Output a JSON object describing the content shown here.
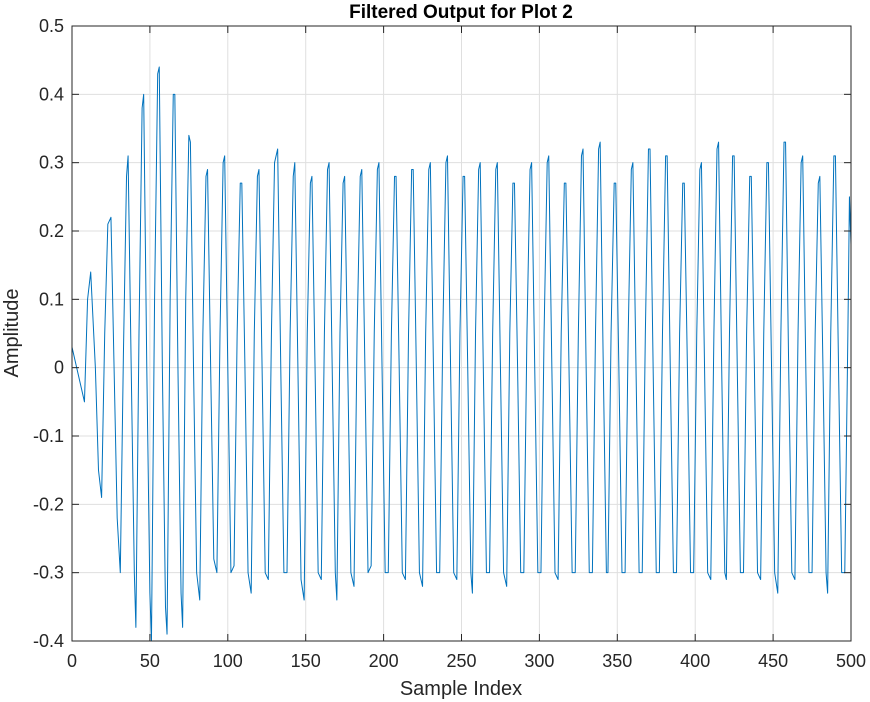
{
  "chart_data": {
    "type": "line",
    "title": "Filtered Output for Plot 2",
    "xlabel": "Sample Index",
    "ylabel": "Amplitude",
    "xlim": [
      0,
      500
    ],
    "ylim": [
      -0.4,
      0.5
    ],
    "xticks": [
      0,
      50,
      100,
      150,
      200,
      250,
      300,
      350,
      400,
      450,
      500
    ],
    "yticks": [
      -0.4,
      -0.3,
      -0.2,
      -0.1,
      0,
      0.1,
      0.2,
      0.3,
      0.4,
      0.5
    ],
    "grid": true,
    "colors": {
      "series": "#0072BD",
      "grid": "#dfdfdf",
      "axis": "#262626"
    },
    "series": [
      {
        "points": [
          [
            0,
            0.03
          ],
          [
            3,
            0.0
          ],
          [
            6,
            -0.03
          ],
          [
            8,
            -0.05
          ],
          [
            10,
            0.1
          ],
          [
            12,
            0.14
          ],
          [
            15,
            0.0
          ],
          [
            17,
            -0.15
          ],
          [
            19,
            -0.19
          ],
          [
            21,
            0.05
          ],
          [
            23,
            0.21
          ],
          [
            25,
            0.22
          ],
          [
            27,
            0.0
          ],
          [
            29,
            -0.22
          ],
          [
            31,
            -0.3
          ],
          [
            33,
            0.02
          ],
          [
            35,
            0.28
          ],
          [
            36,
            0.31
          ],
          [
            38,
            0.0
          ],
          [
            40,
            -0.3
          ],
          [
            41,
            -0.38
          ],
          [
            43,
            0.05
          ],
          [
            45,
            0.38
          ],
          [
            46,
            0.4
          ],
          [
            48,
            0.0
          ],
          [
            50,
            -0.33
          ],
          [
            51,
            -0.4
          ],
          [
            53,
            0.1
          ],
          [
            55,
            0.43
          ],
          [
            56,
            0.44
          ],
          [
            58,
            0.0
          ],
          [
            60,
            -0.35
          ],
          [
            61,
            -0.39
          ],
          [
            63,
            0.1
          ],
          [
            65,
            0.4
          ],
          [
            66,
            0.4
          ],
          [
            68,
            0.0
          ],
          [
            70,
            -0.33
          ],
          [
            71,
            -0.38
          ],
          [
            73,
            0.1
          ],
          [
            75,
            0.34
          ],
          [
            76,
            0.33
          ],
          [
            78,
            0.0
          ],
          [
            80,
            -0.3
          ],
          [
            82,
            -0.34
          ],
          [
            84,
            0.05
          ],
          [
            86,
            0.28
          ],
          [
            87,
            0.29
          ],
          [
            89,
            0.0
          ],
          [
            91,
            -0.28
          ],
          [
            93,
            -0.3
          ],
          [
            95,
            0.05
          ],
          [
            97,
            0.3
          ],
          [
            98,
            0.31
          ],
          [
            100,
            0.0
          ],
          [
            102,
            -0.3
          ],
          [
            104,
            -0.29
          ],
          [
            106,
            0.05
          ],
          [
            108,
            0.27
          ],
          [
            109,
            0.27
          ],
          [
            111,
            0.0
          ],
          [
            113,
            -0.3
          ],
          [
            115,
            -0.33
          ],
          [
            117,
            0.05
          ],
          [
            119,
            0.28
          ],
          [
            120,
            0.29
          ],
          [
            122,
            0.0
          ],
          [
            124,
            -0.3
          ],
          [
            126,
            -0.31
          ],
          [
            128,
            0.05
          ],
          [
            130,
            0.3
          ],
          [
            132,
            0.32
          ],
          [
            134,
            0.0
          ],
          [
            136,
            -0.3
          ],
          [
            138,
            -0.3
          ],
          [
            140,
            0.05
          ],
          [
            142,
            0.28
          ],
          [
            143,
            0.3
          ],
          [
            145,
            0.0
          ],
          [
            147,
            -0.31
          ],
          [
            149,
            -0.34
          ],
          [
            151,
            0.05
          ],
          [
            153,
            0.27
          ],
          [
            154,
            0.28
          ],
          [
            156,
            0.0
          ],
          [
            158,
            -0.3
          ],
          [
            160,
            -0.31
          ],
          [
            162,
            0.05
          ],
          [
            164,
            0.29
          ],
          [
            165,
            0.3
          ],
          [
            167,
            0.0
          ],
          [
            169,
            -0.3
          ],
          [
            170,
            -0.34
          ],
          [
            172,
            0.05
          ],
          [
            174,
            0.27
          ],
          [
            175,
            0.28
          ],
          [
            177,
            0.0
          ],
          [
            179,
            -0.3
          ],
          [
            181,
            -0.32
          ],
          [
            183,
            0.05
          ],
          [
            185,
            0.28
          ],
          [
            186,
            0.29
          ],
          [
            188,
            0.0
          ],
          [
            190,
            -0.3
          ],
          [
            192,
            -0.29
          ],
          [
            194,
            0.05
          ],
          [
            196,
            0.29
          ],
          [
            197,
            0.3
          ],
          [
            199,
            0.0
          ],
          [
            201,
            -0.3
          ],
          [
            203,
            -0.3
          ],
          [
            205,
            0.05
          ],
          [
            207,
            0.28
          ],
          [
            208,
            0.28
          ],
          [
            210,
            0.0
          ],
          [
            212,
            -0.3
          ],
          [
            214,
            -0.31
          ],
          [
            216,
            0.05
          ],
          [
            218,
            0.29
          ],
          [
            219,
            0.29
          ],
          [
            221,
            0.0
          ],
          [
            223,
            -0.3
          ],
          [
            225,
            -0.32
          ],
          [
            227,
            0.05
          ],
          [
            229,
            0.29
          ],
          [
            230,
            0.3
          ],
          [
            232,
            0.0
          ],
          [
            234,
            -0.3
          ],
          [
            236,
            -0.3
          ],
          [
            238,
            0.05
          ],
          [
            240,
            0.3
          ],
          [
            241,
            0.31
          ],
          [
            243,
            0.0
          ],
          [
            245,
            -0.3
          ],
          [
            247,
            -0.31
          ],
          [
            249,
            0.05
          ],
          [
            251,
            0.28
          ],
          [
            252,
            0.28
          ],
          [
            254,
            0.0
          ],
          [
            256,
            -0.3
          ],
          [
            257,
            -0.33
          ],
          [
            259,
            0.05
          ],
          [
            261,
            0.29
          ],
          [
            262,
            0.3
          ],
          [
            264,
            0.0
          ],
          [
            266,
            -0.3
          ],
          [
            268,
            -0.3
          ],
          [
            270,
            0.05
          ],
          [
            272,
            0.29
          ],
          [
            273,
            0.3
          ],
          [
            275,
            0.0
          ],
          [
            277,
            -0.3
          ],
          [
            279,
            -0.32
          ],
          [
            281,
            0.05
          ],
          [
            283,
            0.27
          ],
          [
            284,
            0.27
          ],
          [
            286,
            0.0
          ],
          [
            288,
            -0.3
          ],
          [
            290,
            -0.3
          ],
          [
            292,
            0.05
          ],
          [
            294,
            0.29
          ],
          [
            295,
            0.3
          ],
          [
            297,
            0.0
          ],
          [
            299,
            -0.3
          ],
          [
            301,
            -0.3
          ],
          [
            303,
            0.05
          ],
          [
            305,
            0.3
          ],
          [
            306,
            0.31
          ],
          [
            308,
            0.0
          ],
          [
            310,
            -0.3
          ],
          [
            312,
            -0.31
          ],
          [
            314,
            0.05
          ],
          [
            316,
            0.27
          ],
          [
            317,
            0.27
          ],
          [
            319,
            0.0
          ],
          [
            321,
            -0.3
          ],
          [
            323,
            -0.3
          ],
          [
            325,
            0.05
          ],
          [
            327,
            0.31
          ],
          [
            328,
            0.32
          ],
          [
            330,
            0.0
          ],
          [
            332,
            -0.3
          ],
          [
            334,
            -0.3
          ],
          [
            336,
            0.05
          ],
          [
            338,
            0.32
          ],
          [
            339,
            0.33
          ],
          [
            341,
            0.0
          ],
          [
            343,
            -0.3
          ],
          [
            344,
            -0.3
          ],
          [
            346,
            0.05
          ],
          [
            348,
            0.27
          ],
          [
            349,
            0.27
          ],
          [
            351,
            0.0
          ],
          [
            353,
            -0.3
          ],
          [
            355,
            -0.3
          ],
          [
            357,
            0.05
          ],
          [
            359,
            0.29
          ],
          [
            360,
            0.3
          ],
          [
            362,
            0.0
          ],
          [
            364,
            -0.3
          ],
          [
            366,
            -0.3
          ],
          [
            368,
            0.05
          ],
          [
            370,
            0.32
          ],
          [
            371,
            0.32
          ],
          [
            373,
            0.0
          ],
          [
            375,
            -0.3
          ],
          [
            377,
            -0.3
          ],
          [
            379,
            0.05
          ],
          [
            381,
            0.31
          ],
          [
            382,
            0.31
          ],
          [
            384,
            0.0
          ],
          [
            386,
            -0.3
          ],
          [
            388,
            -0.3
          ],
          [
            390,
            0.05
          ],
          [
            392,
            0.27
          ],
          [
            393,
            0.27
          ],
          [
            395,
            0.0
          ],
          [
            397,
            -0.3
          ],
          [
            399,
            -0.3
          ],
          [
            401,
            0.05
          ],
          [
            403,
            0.29
          ],
          [
            404,
            0.3
          ],
          [
            406,
            0.0
          ],
          [
            408,
            -0.3
          ],
          [
            410,
            -0.31
          ],
          [
            412,
            0.05
          ],
          [
            414,
            0.32
          ],
          [
            415,
            0.33
          ],
          [
            417,
            0.0
          ],
          [
            419,
            -0.3
          ],
          [
            420,
            -0.31
          ],
          [
            422,
            0.05
          ],
          [
            424,
            0.31
          ],
          [
            425,
            0.31
          ],
          [
            427,
            0.0
          ],
          [
            429,
            -0.3
          ],
          [
            431,
            -0.3
          ],
          [
            433,
            0.05
          ],
          [
            435,
            0.28
          ],
          [
            436,
            0.28
          ],
          [
            438,
            0.0
          ],
          [
            440,
            -0.3
          ],
          [
            442,
            -0.31
          ],
          [
            444,
            0.05
          ],
          [
            446,
            0.3
          ],
          [
            447,
            0.3
          ],
          [
            449,
            0.0
          ],
          [
            451,
            -0.3
          ],
          [
            453,
            -0.33
          ],
          [
            455,
            0.05
          ],
          [
            457,
            0.33
          ],
          [
            458,
            0.33
          ],
          [
            460,
            0.0
          ],
          [
            462,
            -0.3
          ],
          [
            464,
            -0.31
          ],
          [
            466,
            0.05
          ],
          [
            468,
            0.3
          ],
          [
            469,
            0.31
          ],
          [
            471,
            0.0
          ],
          [
            473,
            -0.3
          ],
          [
            475,
            -0.3
          ],
          [
            477,
            0.05
          ],
          [
            479,
            0.27
          ],
          [
            480,
            0.28
          ],
          [
            482,
            0.0
          ],
          [
            484,
            -0.3
          ],
          [
            485,
            -0.33
          ],
          [
            487,
            0.05
          ],
          [
            489,
            0.31
          ],
          [
            490,
            0.31
          ],
          [
            492,
            0.0
          ],
          [
            494,
            -0.3
          ],
          [
            496,
            -0.3
          ],
          [
            498,
            0.05
          ],
          [
            499,
            0.25
          ],
          [
            500,
            0.18
          ]
        ]
      }
    ]
  }
}
